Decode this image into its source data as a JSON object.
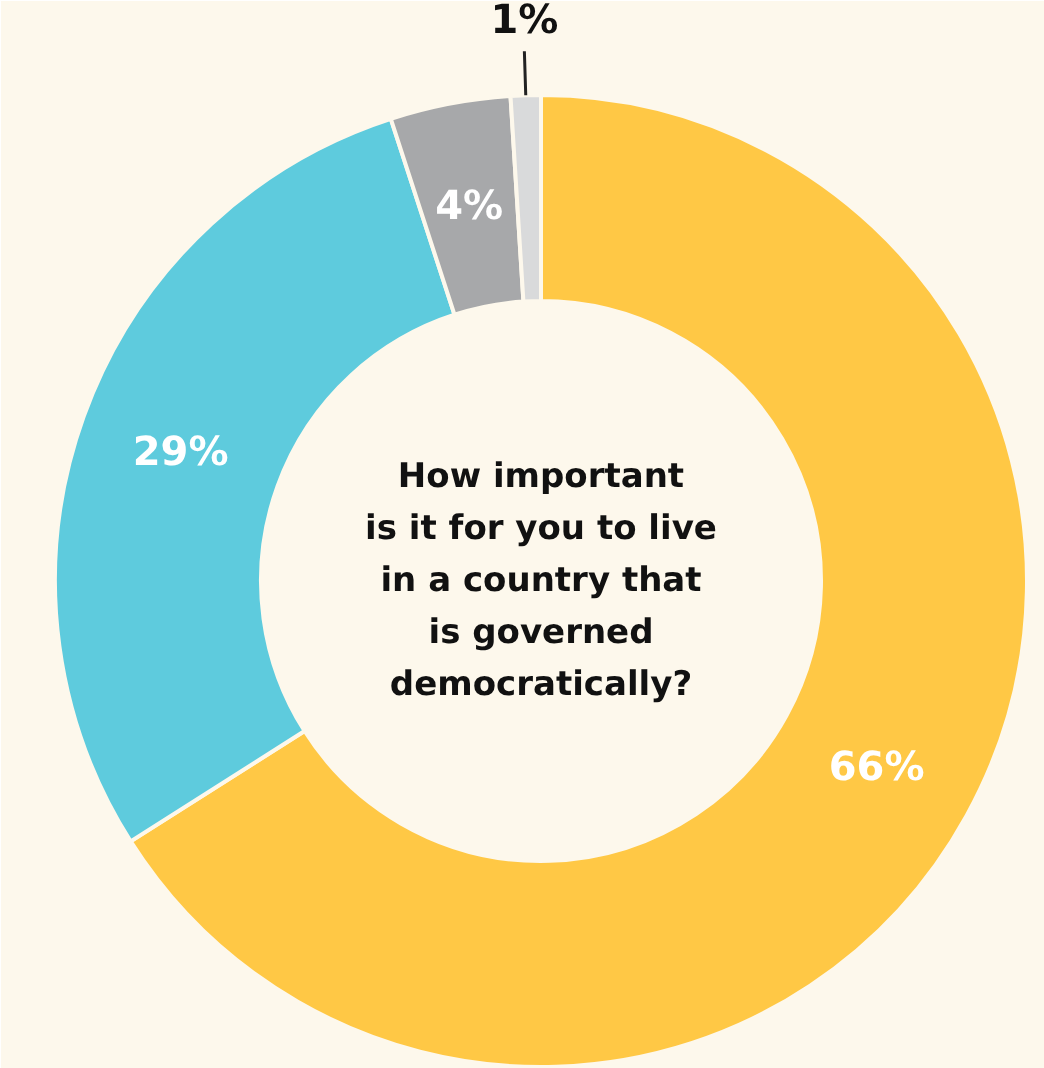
{
  "chart_data": {
    "type": "donut",
    "title": "How important\nis it for you to live\nin a country that\nis governed\ndemocratically?",
    "categories": [
      null,
      null,
      null,
      null
    ],
    "values": [
      66,
      29,
      4,
      1
    ],
    "colors": [
      "#ffc845",
      "#5ecbdd",
      "#a7a8aa",
      "#d9dadb"
    ],
    "value_labels": [
      "66%",
      "29%",
      "4%",
      "1%"
    ]
  }
}
